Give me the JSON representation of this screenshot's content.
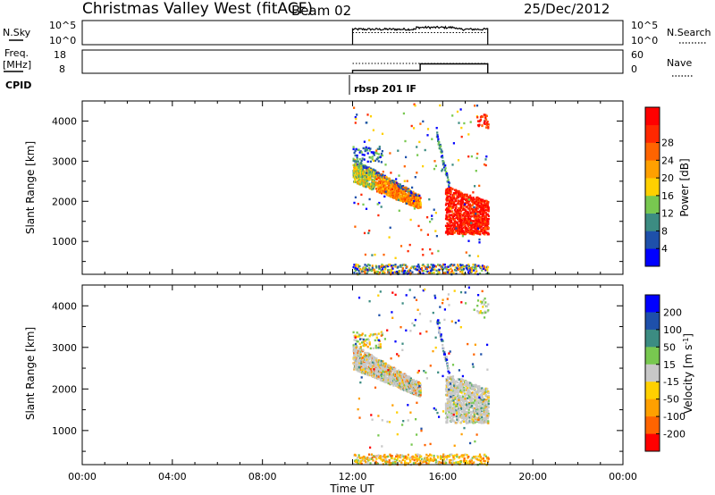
{
  "header": {
    "station": "Christmas Valley West (fitACF)",
    "beam": "Beam 02",
    "date": "25/Dec/2012"
  },
  "top_panels": {
    "nsky": {
      "label": "N.Sky",
      "left_ticks": [
        "10^5",
        "10^0"
      ],
      "right_ticks": [
        "10^5",
        "10^0"
      ],
      "right_label": "N.Search"
    },
    "freq": {
      "label_line1": "Freq.",
      "label_line2": "[MHz]",
      "left_ticks": [
        "18",
        "8"
      ],
      "right_ticks": [
        "60",
        "0"
      ],
      "right_label": "Nave"
    },
    "cpid": {
      "label": "CPID",
      "program": "rbsp 201 IF"
    }
  },
  "colors": {
    "power": [
      "#0000ff",
      "#1e50aa",
      "#3c8c82",
      "#78c850",
      "#ffd000",
      "#ffa000",
      "#ff6400",
      "#ff2800",
      "#ff0000"
    ],
    "velocity": [
      "#0000ff",
      "#1e50aa",
      "#3c8c82",
      "#78c850",
      "#c8c8c8",
      "#ffd000",
      "#ffa000",
      "#ff6400",
      "#ff0000"
    ]
  },
  "chart_data": [
    {
      "type": "line",
      "name": "nsky-nsearch",
      "x_range": [
        0,
        24
      ],
      "y_scale": "log",
      "series": [
        {
          "name": "N.Sky",
          "x": [
            12.0,
            18.0
          ],
          "y_level": "high"
        },
        {
          "name": "N.Search",
          "x": [
            12.0,
            18.0
          ],
          "y_level": "high"
        }
      ]
    },
    {
      "type": "line",
      "name": "freq-nave",
      "x_range": [
        0,
        24
      ],
      "series": [
        {
          "name": "Freq",
          "x": [
            12.0,
            15.0,
            15.0,
            18.0
          ],
          "y": [
            10,
            10,
            14.5,
            14.5
          ]
        },
        {
          "name": "Nave",
          "x": [
            12.0,
            18.0
          ],
          "y": [
            30,
            30
          ]
        }
      ]
    },
    {
      "type": "heatmap",
      "name": "power",
      "x_range": [
        0,
        24
      ],
      "y_range": [
        180,
        4500
      ],
      "x_ticks": [
        "00:00",
        "04:00",
        "08:00",
        "12:00",
        "16:00",
        "20:00",
        "00:00"
      ],
      "y_ticks": [
        1000,
        2000,
        3000,
        4000
      ],
      "ylabel": "Slant Range [km]",
      "colorbar": {
        "label": "Power [dB]",
        "ticks": [
          4,
          8,
          12,
          16,
          20,
          24,
          28
        ],
        "range": [
          0,
          32
        ]
      },
      "data_window": [
        12.0,
        18.0
      ]
    },
    {
      "type": "heatmap",
      "name": "velocity",
      "x_range": [
        0,
        24
      ],
      "y_range": [
        180,
        4500
      ],
      "x_ticks": [
        "00:00",
        "04:00",
        "08:00",
        "12:00",
        "16:00",
        "20:00",
        "00:00"
      ],
      "y_ticks": [
        1000,
        2000,
        3000,
        4000
      ],
      "ylabel": "Slant Range [km]",
      "xlabel": "Time UT",
      "colorbar": {
        "label": "Velocity [m s^-1]",
        "ticks": [
          200,
          100,
          50,
          15,
          -15,
          -50,
          -100,
          -200
        ]
      },
      "data_window": [
        12.0,
        18.0
      ]
    }
  ]
}
